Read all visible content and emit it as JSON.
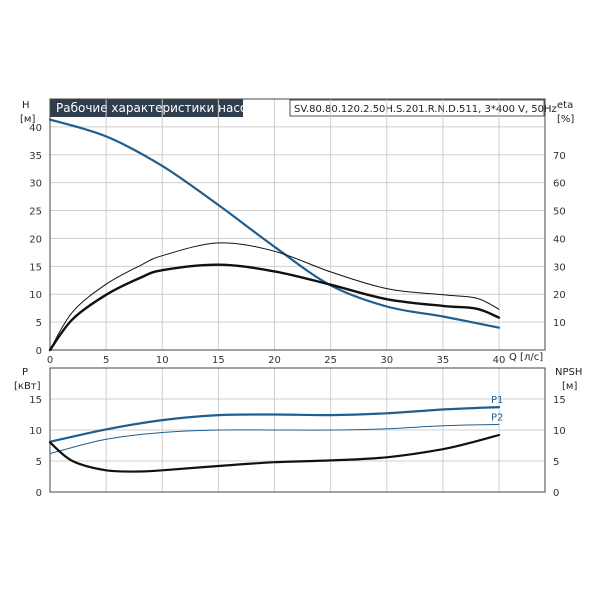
{
  "title": "Рабочие характеристики насоса",
  "model": "SV.80.80.120.2.50H.S.201.R.N.D.511, 3*400 V, 50Hz",
  "colors": {
    "blue": "#1f5e8e",
    "black": "#111111",
    "title_bg": "#2f3e4c"
  },
  "chart_data": [
    {
      "type": "line",
      "name": "upper-panel",
      "left_axis": {
        "label_top": "H",
        "unit": "[м]",
        "ylim": [
          0,
          45
        ],
        "ticks": [
          0,
          5,
          10,
          15,
          20,
          25,
          30,
          35,
          40
        ]
      },
      "right_axis": {
        "label_top": "eta",
        "unit": "[%]",
        "ylim": [
          0,
          90
        ],
        "ticks": [
          10,
          20,
          30,
          40,
          50,
          60,
          70
        ]
      },
      "x_axis": {
        "label": "Q [л/с]",
        "xlim": [
          0,
          40
        ],
        "ticks": [
          0,
          5,
          10,
          15,
          20,
          25,
          30,
          35,
          40
        ]
      },
      "grid": true,
      "series": [
        {
          "axis": "left",
          "color": "#1f5e8e",
          "width": 2.2,
          "x": [
            0,
            5,
            10,
            15,
            20,
            25,
            30,
            35,
            40
          ],
          "y": [
            41.3,
            38.3,
            33.0,
            26.0,
            18.5,
            11.6,
            7.8,
            6.0,
            4.0
          ]
        },
        {
          "axis": "left",
          "color": "#111111",
          "width": 1,
          "x": [
            0,
            2,
            5,
            8,
            10,
            15,
            20,
            25,
            30,
            35,
            38,
            40
          ],
          "y": [
            0,
            6.8,
            11.8,
            15.1,
            16.9,
            19.2,
            17.7,
            14.0,
            11.0,
            9.9,
            9.3,
            7.3
          ]
        },
        {
          "axis": "left",
          "color": "#111111",
          "width": 2.4,
          "x": [
            0,
            2,
            5,
            8,
            10,
            15,
            20,
            25,
            30,
            35,
            38,
            40
          ],
          "y": [
            0,
            5.5,
            9.9,
            12.9,
            14.3,
            15.3,
            14.1,
            11.7,
            9.1,
            7.9,
            7.4,
            5.8
          ]
        }
      ]
    },
    {
      "type": "line",
      "name": "lower-panel",
      "left_axis": {
        "label_top": "P",
        "unit": "[кВт]",
        "ylim": [
          0,
          20
        ],
        "ticks": [
          0,
          5,
          10,
          15
        ]
      },
      "right_axis": {
        "label_top": "NPSH",
        "unit": "[м]",
        "ylim": [
          0,
          20
        ],
        "ticks": [
          0,
          5,
          10,
          15
        ]
      },
      "x_axis": {
        "xlim": [
          0,
          40
        ],
        "ticks": []
      },
      "grid": true,
      "series": [
        {
          "name": "P1",
          "axis": "left",
          "color": "#1f5e8e",
          "width": 2.2,
          "label_pos": 1,
          "x": [
            0,
            5,
            10,
            15,
            20,
            25,
            30,
            35,
            40
          ],
          "y": [
            8.1,
            10.1,
            11.6,
            12.4,
            12.5,
            12.4,
            12.7,
            13.3,
            13.7
          ]
        },
        {
          "name": "P2",
          "axis": "left",
          "color": "#1f5e8e",
          "width": 1,
          "label_pos": 1,
          "x": [
            0,
            5,
            10,
            15,
            20,
            25,
            30,
            35,
            40
          ],
          "y": [
            6.2,
            8.5,
            9.6,
            10.0,
            10.0,
            10.0,
            10.2,
            10.7,
            10.9
          ]
        },
        {
          "axis": "right",
          "color": "#111111",
          "width": 2.2,
          "x": [
            0,
            2,
            5,
            8,
            10,
            15,
            20,
            25,
            30,
            35,
            38,
            40
          ],
          "y": [
            8.0,
            5.0,
            3.5,
            3.3,
            3.5,
            4.2,
            4.8,
            5.1,
            5.6,
            6.9,
            8.2,
            9.2
          ]
        }
      ]
    }
  ]
}
